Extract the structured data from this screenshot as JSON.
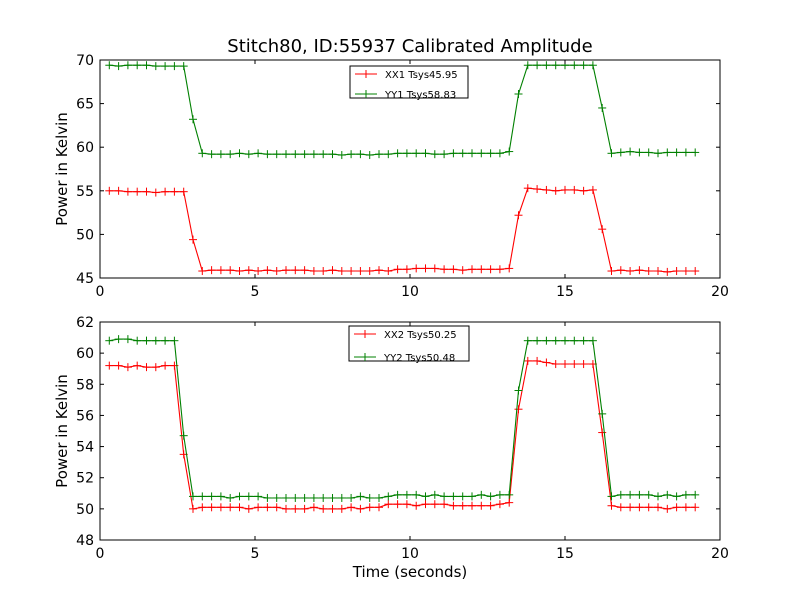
{
  "title": "Stitch80, ID:55937 Calibrated Amplitude",
  "chart_data": [
    {
      "type": "line",
      "xlabel": "",
      "ylabel": "Power in Kelvin",
      "xlim": [
        0,
        20
      ],
      "ylim": [
        45,
        70
      ],
      "xticks": [
        "0",
        "5",
        "10",
        "15",
        "20"
      ],
      "yticks": [
        "45",
        "50",
        "55",
        "60",
        "65",
        "70"
      ],
      "legend_position": "top-center",
      "series": [
        {
          "name": "XX1 Tsys45.95",
          "color": "#ff0000",
          "x": [
            0.3,
            0.6,
            0.9,
            1.2,
            1.5,
            1.8,
            2.1,
            2.4,
            2.7,
            3.0,
            3.3,
            3.6,
            3.9,
            4.2,
            4.5,
            4.8,
            5.1,
            5.4,
            5.7,
            6.0,
            6.3,
            6.6,
            6.9,
            7.2,
            7.5,
            7.8,
            8.1,
            8.4,
            8.7,
            9.0,
            9.3,
            9.6,
            9.9,
            10.2,
            10.5,
            10.8,
            11.1,
            11.4,
            11.7,
            12.0,
            12.3,
            12.6,
            12.9,
            13.2,
            13.5,
            13.8,
            14.1,
            14.4,
            14.7,
            15.0,
            15.3,
            15.6,
            15.9,
            16.2,
            16.5,
            16.8,
            17.1,
            17.4,
            17.7,
            18.0,
            18.3,
            18.6,
            18.9,
            19.2
          ],
          "y": [
            55.0,
            55.0,
            54.9,
            54.9,
            54.9,
            54.8,
            54.9,
            54.9,
            54.9,
            49.4,
            45.8,
            45.9,
            45.9,
            45.9,
            45.8,
            45.9,
            45.8,
            45.9,
            45.8,
            45.9,
            45.9,
            45.9,
            45.8,
            45.8,
            45.9,
            45.8,
            45.8,
            45.8,
            45.8,
            45.9,
            45.8,
            46.0,
            46.0,
            46.1,
            46.1,
            46.1,
            46.0,
            46.0,
            45.9,
            46.0,
            46.0,
            46.0,
            46.0,
            46.1,
            52.2,
            55.3,
            55.2,
            55.1,
            55.0,
            55.1,
            55.1,
            55.0,
            55.1,
            50.6,
            45.8,
            45.9,
            45.8,
            45.9,
            45.8,
            45.8,
            45.7,
            45.8,
            45.8,
            45.8
          ]
        },
        {
          "name": "YY1 Tsys58.83",
          "color": "#008000",
          "x": [
            0.3,
            0.6,
            0.9,
            1.2,
            1.5,
            1.8,
            2.1,
            2.4,
            2.7,
            3.0,
            3.3,
            3.6,
            3.9,
            4.2,
            4.5,
            4.8,
            5.1,
            5.4,
            5.7,
            6.0,
            6.3,
            6.6,
            6.9,
            7.2,
            7.5,
            7.8,
            8.1,
            8.4,
            8.7,
            9.0,
            9.3,
            9.6,
            9.9,
            10.2,
            10.5,
            10.8,
            11.1,
            11.4,
            11.7,
            12.0,
            12.3,
            12.6,
            12.9,
            13.2,
            13.5,
            13.8,
            14.1,
            14.4,
            14.7,
            15.0,
            15.3,
            15.6,
            15.9,
            16.2,
            16.5,
            16.8,
            17.1,
            17.4,
            17.7,
            18.0,
            18.3,
            18.6,
            18.9,
            19.2
          ],
          "y": [
            69.4,
            69.3,
            69.4,
            69.4,
            69.4,
            69.3,
            69.3,
            69.3,
            69.3,
            63.2,
            59.3,
            59.2,
            59.2,
            59.2,
            59.3,
            59.2,
            59.3,
            59.2,
            59.2,
            59.2,
            59.2,
            59.2,
            59.2,
            59.2,
            59.2,
            59.1,
            59.2,
            59.2,
            59.1,
            59.2,
            59.2,
            59.3,
            59.3,
            59.3,
            59.3,
            59.2,
            59.2,
            59.3,
            59.3,
            59.3,
            59.3,
            59.3,
            59.3,
            59.5,
            66.1,
            69.4,
            69.4,
            69.4,
            69.4,
            69.4,
            69.4,
            69.4,
            69.4,
            64.5,
            59.3,
            59.4,
            59.5,
            59.4,
            59.4,
            59.3,
            59.4,
            59.4,
            59.4,
            59.4
          ]
        }
      ]
    },
    {
      "type": "line",
      "xlabel": "Time (seconds)",
      "ylabel": "Power in Kelvin",
      "xlim": [
        0,
        20
      ],
      "ylim": [
        48,
        62
      ],
      "xticks": [
        "0",
        "5",
        "10",
        "15",
        "20"
      ],
      "yticks": [
        "48",
        "50",
        "52",
        "54",
        "56",
        "58",
        "60",
        "62"
      ],
      "legend_position": "top-center",
      "series": [
        {
          "name": "XX2 Tsys50.25",
          "color": "#ff0000",
          "x": [
            0.3,
            0.6,
            0.9,
            1.2,
            1.5,
            1.8,
            2.1,
            2.4,
            2.7,
            3.0,
            3.3,
            3.6,
            3.9,
            4.2,
            4.5,
            4.8,
            5.1,
            5.4,
            5.7,
            6.0,
            6.3,
            6.6,
            6.9,
            7.2,
            7.5,
            7.8,
            8.1,
            8.4,
            8.7,
            9.0,
            9.3,
            9.6,
            9.9,
            10.2,
            10.5,
            10.8,
            11.1,
            11.4,
            11.7,
            12.0,
            12.3,
            12.6,
            12.9,
            13.2,
            13.5,
            13.8,
            14.1,
            14.4,
            14.7,
            15.0,
            15.3,
            15.6,
            15.9,
            16.2,
            16.5,
            16.8,
            17.1,
            17.4,
            17.7,
            18.0,
            18.3,
            18.6,
            18.9,
            19.2
          ],
          "y": [
            59.2,
            59.2,
            59.1,
            59.2,
            59.1,
            59.1,
            59.2,
            59.2,
            53.5,
            50.0,
            50.1,
            50.1,
            50.1,
            50.1,
            50.1,
            50.0,
            50.1,
            50.1,
            50.1,
            50.0,
            50.0,
            50.0,
            50.1,
            50.0,
            50.0,
            50.0,
            50.1,
            50.0,
            50.1,
            50.1,
            50.3,
            50.3,
            50.3,
            50.2,
            50.3,
            50.3,
            50.3,
            50.2,
            50.2,
            50.2,
            50.2,
            50.2,
            50.3,
            50.4,
            56.4,
            59.5,
            59.5,
            59.4,
            59.3,
            59.3,
            59.3,
            59.3,
            59.3,
            54.9,
            50.2,
            50.1,
            50.1,
            50.1,
            50.1,
            50.1,
            50.0,
            50.1,
            50.1,
            50.1
          ]
        },
        {
          "name": "YY2 Tsys50.48",
          "color": "#008000",
          "x": [
            0.3,
            0.6,
            0.9,
            1.2,
            1.5,
            1.8,
            2.1,
            2.4,
            2.7,
            3.0,
            3.3,
            3.6,
            3.9,
            4.2,
            4.5,
            4.8,
            5.1,
            5.4,
            5.7,
            6.0,
            6.3,
            6.6,
            6.9,
            7.2,
            7.5,
            7.8,
            8.1,
            8.4,
            8.7,
            9.0,
            9.3,
            9.6,
            9.9,
            10.2,
            10.5,
            10.8,
            11.1,
            11.4,
            11.7,
            12.0,
            12.3,
            12.6,
            12.9,
            13.2,
            13.5,
            13.8,
            14.1,
            14.4,
            14.7,
            15.0,
            15.3,
            15.6,
            15.9,
            16.2,
            16.5,
            16.8,
            17.1,
            17.4,
            17.7,
            18.0,
            18.3,
            18.6,
            18.9,
            19.2
          ],
          "y": [
            60.8,
            60.9,
            60.9,
            60.8,
            60.8,
            60.8,
            60.8,
            60.8,
            54.7,
            50.8,
            50.8,
            50.8,
            50.8,
            50.7,
            50.8,
            50.8,
            50.8,
            50.7,
            50.7,
            50.7,
            50.7,
            50.7,
            50.7,
            50.7,
            50.7,
            50.7,
            50.7,
            50.8,
            50.7,
            50.7,
            50.8,
            50.9,
            50.9,
            50.9,
            50.8,
            50.9,
            50.8,
            50.8,
            50.8,
            50.8,
            50.9,
            50.8,
            50.9,
            50.9,
            57.6,
            60.8,
            60.8,
            60.8,
            60.8,
            60.8,
            60.8,
            60.8,
            60.8,
            56.1,
            50.8,
            50.9,
            50.9,
            50.9,
            50.9,
            50.8,
            50.9,
            50.8,
            50.9,
            50.9
          ]
        }
      ]
    }
  ]
}
